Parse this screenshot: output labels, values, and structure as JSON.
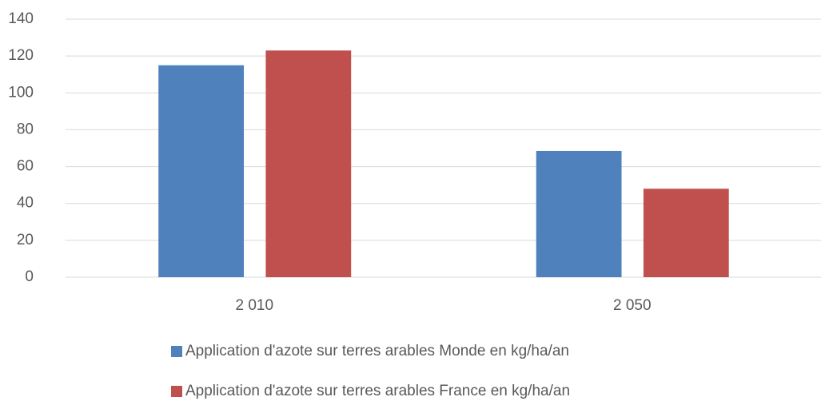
{
  "chart_data": {
    "type": "bar",
    "categories": [
      "2 010",
      "2 050"
    ],
    "series": [
      {
        "name": "Application d'azote sur terres arables Monde en kg/ha/an",
        "color": "#4f81bd",
        "values": [
          115,
          68.5
        ]
      },
      {
        "name": "Application d'azote sur terres arables France en kg/ha/an",
        "color": "#c0504d",
        "values": [
          123,
          48
        ]
      }
    ],
    "ylim": [
      0,
      140
    ],
    "yticks": [
      0,
      20,
      40,
      60,
      80,
      100,
      120,
      140
    ],
    "grid": true,
    "legend": "bottom"
  }
}
